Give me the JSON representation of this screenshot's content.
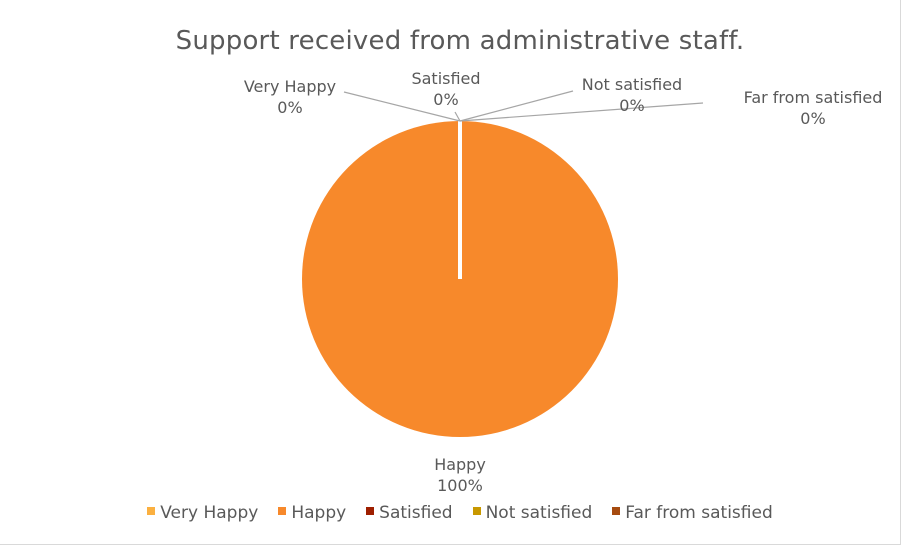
{
  "chart_data": {
    "type": "pie",
    "title": "Support received from administrative staff.",
    "categories": [
      "Very Happy",
      "Happy",
      "Satisfied",
      "Not satisfied",
      "Far from satisfied"
    ],
    "values": [
      0,
      100,
      0,
      0,
      0
    ],
    "data_labels": [
      "0%",
      "100%",
      "0%",
      "0%",
      "0%"
    ],
    "legend_position": "bottom",
    "colors": [
      "#fbb040",
      "#f7892b",
      "#9e1f00",
      "#c89800",
      "#a64b0f"
    ]
  }
}
